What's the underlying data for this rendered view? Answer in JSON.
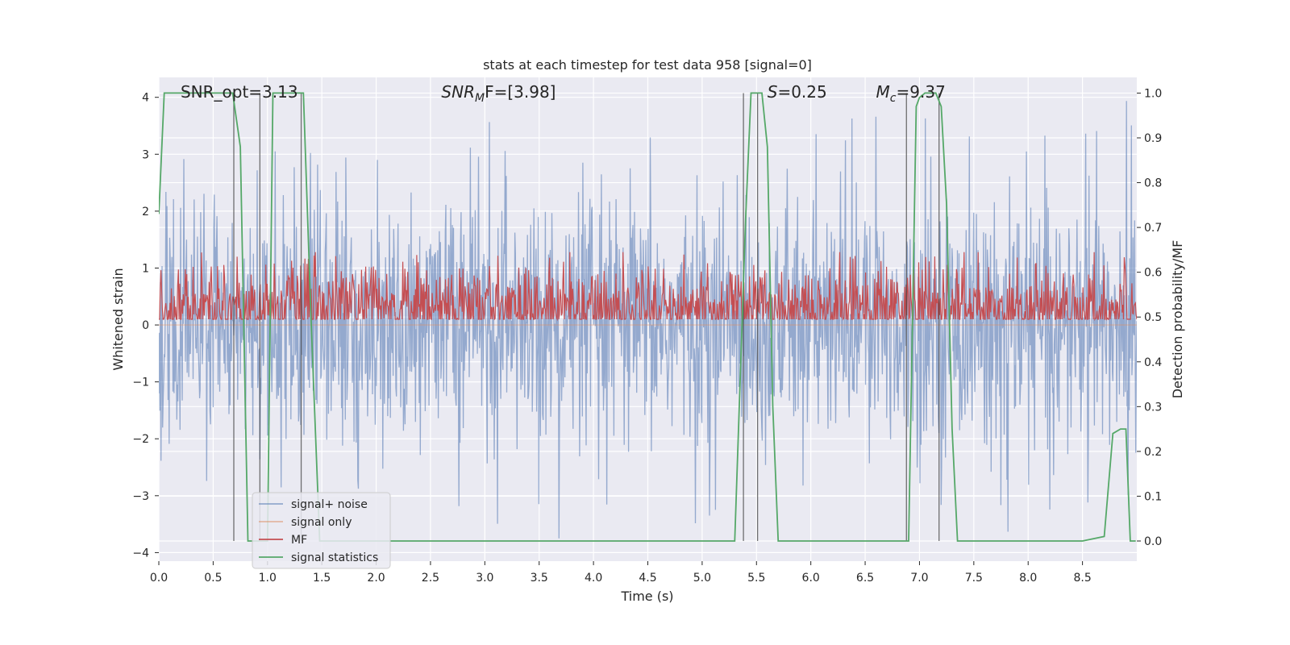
{
  "chart_data": {
    "type": "line",
    "title": "stats at each timestep for test data 958 [signal=0]",
    "xlabel": "Time (s)",
    "ylabel": "Whitened strain",
    "y2label": "Detection probability/MF",
    "xlim": [
      0.0,
      9.0
    ],
    "ylim": [
      -4.15,
      4.35
    ],
    "y2lim": [
      -0.045,
      1.035
    ],
    "x_ticks": [
      "0.0",
      "0.5",
      "1.0",
      "1.5",
      "2.0",
      "2.5",
      "3.0",
      "3.5",
      "4.0",
      "4.5",
      "5.0",
      "5.5",
      "6.0",
      "6.5",
      "7.0",
      "7.5",
      "8.0",
      "8.5"
    ],
    "y_ticks": [
      "4",
      "3",
      "2",
      "1",
      "0",
      "−1",
      "−2",
      "−3",
      "−4"
    ],
    "y2_ticks": [
      "1.0",
      "0.9",
      "0.8",
      "0.7",
      "0.6",
      "0.5",
      "0.4",
      "0.3",
      "0.2",
      "0.1",
      "0.0"
    ],
    "grid": true,
    "annotations": [
      {
        "label": "SNR_opt=3.13",
        "x": 0.2
      },
      {
        "label": "SNR_MF=[3.98]",
        "base": "SNR",
        "sub": "M",
        "rest": "F=[3.98]",
        "x": 2.6
      },
      {
        "label": "S=0.25",
        "base": "S",
        "rest": "=0.25",
        "x": 5.6
      },
      {
        "label": "M_c=9.37",
        "base": "M",
        "sub": "c",
        "rest": "=9.37",
        "x": 6.6
      }
    ],
    "legend": {
      "placement": "lower-left",
      "entries": [
        "signal+ noise",
        "signal only",
        "MF",
        "signal statistics"
      ]
    },
    "series": [
      {
        "name": "signal+ noise",
        "axis": "left",
        "color": "#4c72b0",
        "description_values": "whitened noise strain, amplitude approx ±2 with spikes to ±4"
      },
      {
        "name": "signal only",
        "axis": "left",
        "color": "#dd8452",
        "values_constant": 0
      },
      {
        "name": "MF",
        "axis": "right",
        "color": "#c44e52",
        "mean": 0.52,
        "spread": 0.05
      },
      {
        "name": "signal statistics",
        "axis": "right",
        "color": "#55a868",
        "x": [
          0.0,
          0.05,
          0.1,
          0.2,
          0.3,
          0.4,
          0.5,
          0.6,
          0.68,
          0.75,
          0.82,
          1.0,
          1.05,
          1.1,
          1.2,
          1.3,
          1.33,
          1.4,
          1.48,
          1.6,
          2.0,
          3.0,
          4.0,
          5.0,
          5.3,
          5.4,
          5.45,
          5.5,
          5.55,
          5.6,
          5.65,
          5.7,
          6.0,
          6.5,
          6.9,
          6.97,
          7.0,
          7.05,
          7.1,
          7.15,
          7.2,
          7.25,
          7.3,
          7.35,
          7.5,
          8.0,
          8.5,
          8.7,
          8.78,
          8.85,
          8.9,
          8.94,
          8.99
        ],
        "y": [
          0.73,
          1.0,
          1.0,
          1.0,
          1.0,
          1.0,
          1.0,
          1.0,
          1.0,
          0.88,
          0.0,
          0.0,
          1.0,
          1.0,
          1.0,
          1.0,
          1.0,
          0.5,
          0.0,
          0.0,
          0.0,
          0.0,
          0.0,
          0.0,
          0.0,
          0.72,
          1.0,
          1.0,
          1.0,
          0.88,
          0.3,
          0.0,
          0.0,
          0.0,
          0.0,
          0.97,
          0.99,
          1.0,
          1.0,
          1.0,
          0.97,
          0.75,
          0.25,
          0.0,
          0.0,
          0.0,
          0.0,
          0.01,
          0.24,
          0.25,
          0.25,
          0.0,
          0.0
        ]
      }
    ],
    "vlines": [
      0.69,
      0.93,
      1.31,
      5.38,
      5.51,
      6.88,
      7.18
    ]
  }
}
